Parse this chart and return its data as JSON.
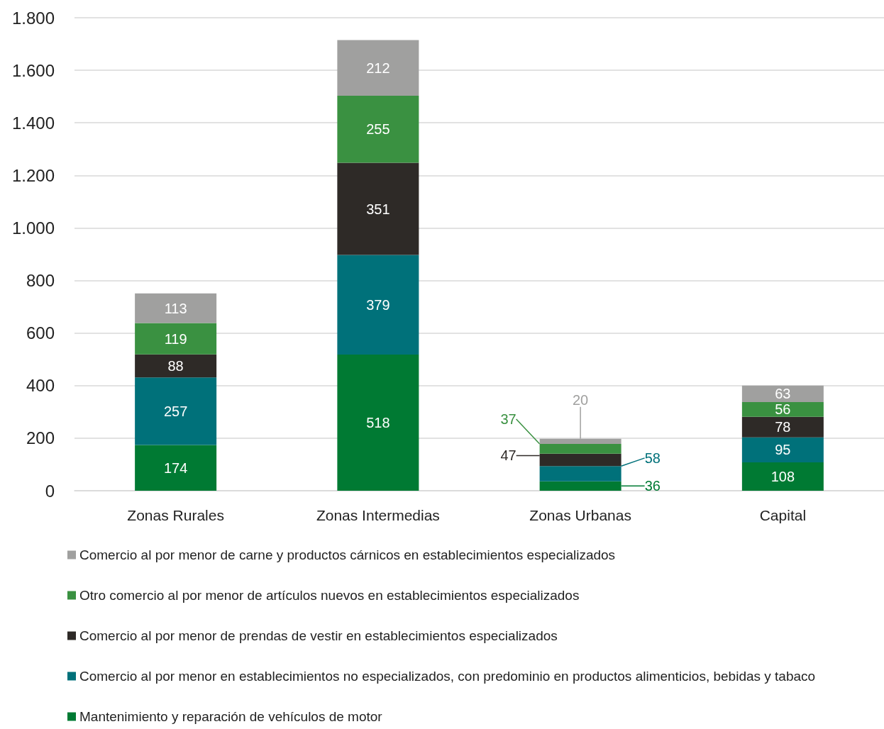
{
  "chart_data": {
    "type": "bar",
    "stacked": true,
    "categories": [
      "Zonas Rurales",
      "Zonas Intermedias",
      "Zonas Urbanas",
      "Capital"
    ],
    "series": [
      {
        "name": "Mantenimiento y reparación de vehículos de motor",
        "color": "#007a33",
        "values": [
          174,
          518,
          36,
          108
        ]
      },
      {
        "name": "Comercio al por menor en establecimientos no especializados, con predominio en productos alimenticios, bebidas y tabaco",
        "color": "#00717a",
        "values": [
          257,
          379,
          58,
          95
        ]
      },
      {
        "name": "Comercio al por menor de prendas de vestir en establecimientos especializados",
        "color": "#2e2a27",
        "values": [
          88,
          351,
          47,
          78
        ]
      },
      {
        "name": "Otro comercio al por menor de artículos nuevos en establecimientos especializados",
        "color": "#3a9141",
        "values": [
          119,
          255,
          37,
          56
        ]
      },
      {
        "name": "Comercio al por menor de carne y productos cárnicos en establecimientos especializados",
        "color": "#a0a09f",
        "values": [
          113,
          212,
          20,
          63
        ]
      }
    ],
    "ylim": [
      0,
      1800
    ],
    "yticks": [
      {
        "value": 0,
        "label": "0"
      },
      {
        "value": 200,
        "label": "200"
      },
      {
        "value": 400,
        "label": "400"
      },
      {
        "value": 600,
        "label": "600"
      },
      {
        "value": 800,
        "label": "800"
      },
      {
        "value": 1000,
        "label": "1.000"
      },
      {
        "value": 1200,
        "label": "1.200"
      },
      {
        "value": 1400,
        "label": "1.400"
      },
      {
        "value": 1600,
        "label": "1.600"
      },
      {
        "value": 1800,
        "label": "1.800"
      }
    ],
    "grid": "y",
    "legend": "bottom",
    "data_labels": true
  }
}
